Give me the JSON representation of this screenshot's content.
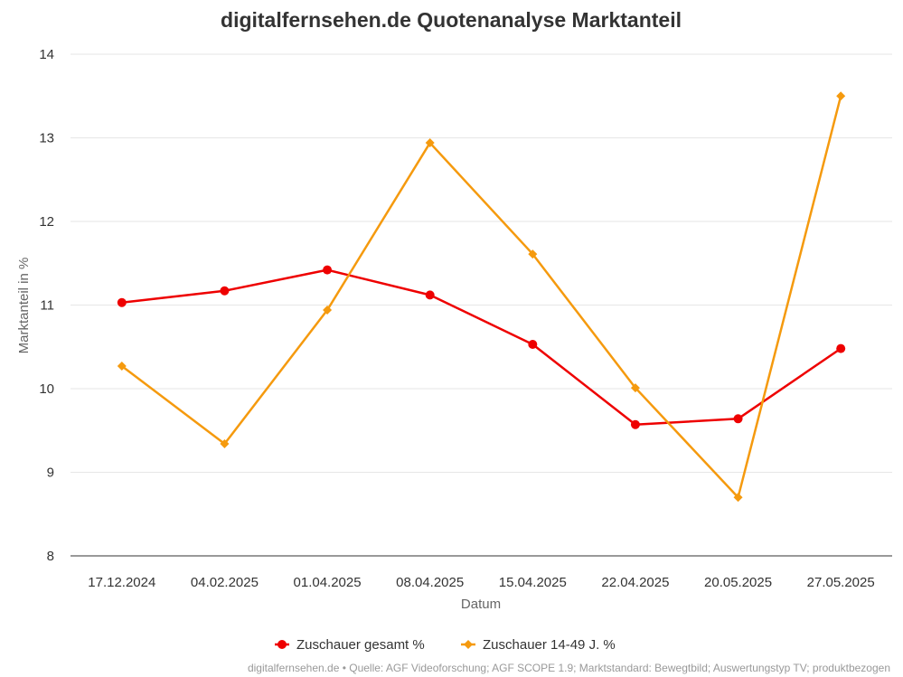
{
  "chart_data": {
    "type": "line",
    "title": "digitalfernsehen.de Quotenanalyse Marktanteil",
    "xlabel": "Datum",
    "ylabel": "Marktanteil in %",
    "categories": [
      "17.12.2024",
      "04.02.2025",
      "01.04.2025",
      "08.04.2025",
      "15.04.2025",
      "22.04.2025",
      "20.05.2025",
      "27.05.2025"
    ],
    "ylim": [
      8,
      14
    ],
    "yticks": [
      "8",
      "9",
      "10",
      "11",
      "12",
      "13",
      "14"
    ],
    "grid": "horizontal",
    "legend_position": "bottom-center",
    "series": [
      {
        "name": "Zuschauer gesamt %",
        "color": "#ee0000",
        "marker": "circle",
        "values": [
          11.03,
          11.17,
          11.42,
          11.12,
          10.53,
          9.57,
          9.64,
          10.48
        ]
      },
      {
        "name": "Zuschauer 14-49 J. %",
        "color": "#f59a0e",
        "marker": "diamond",
        "values": [
          10.27,
          9.34,
          10.94,
          12.94,
          11.61,
          10.01,
          8.7,
          13.5
        ]
      }
    ]
  },
  "credits": "digitalfernsehen.de • Quelle: AGF Videoforschung; AGF SCOPE 1.9; Marktstandard: Bewegtbild; Auswertungstyp TV; produktbezogen"
}
